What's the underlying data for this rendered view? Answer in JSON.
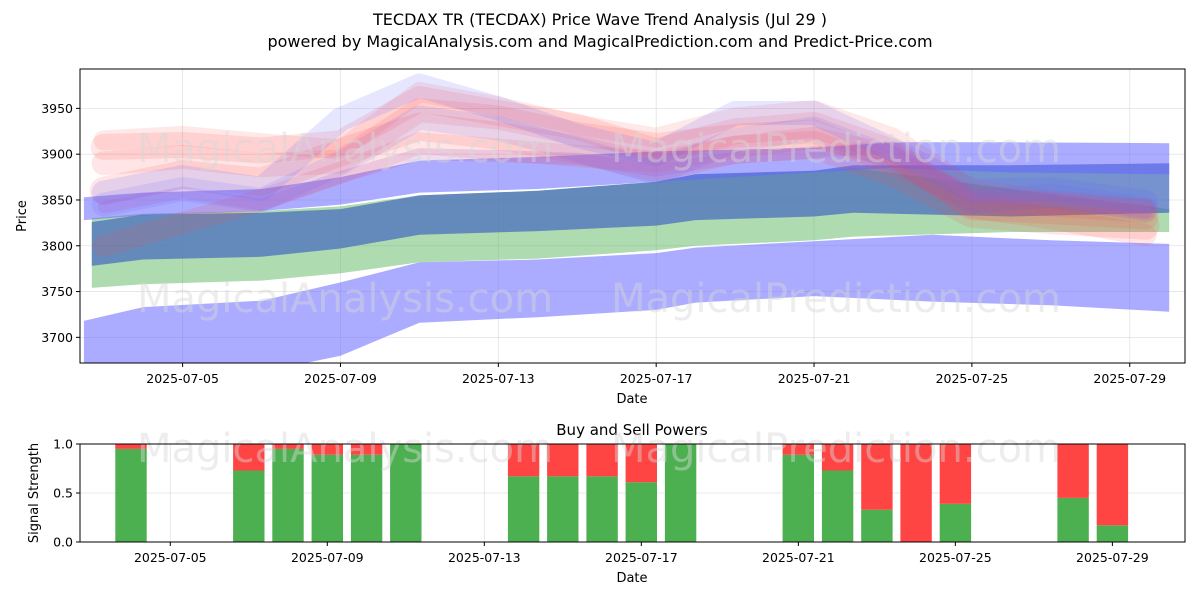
{
  "title_line1": "TECDAX TR (TECDAX) Price Wave Trend Analysis (Jul 29 )",
  "title_line2": "powered by MagicalAnalysis.com and MagicalPrediction.com and Predict-Price.com",
  "watermarks": [
    "MagicalAnalysis.com",
    "MagicalPrediction.com",
    "MagicalAnalysis.com",
    "MagicalPrediction.com",
    "MagicalAnalysis.com",
    "MagicalPrediction.com"
  ],
  "colors": {
    "blue": "#6666ff",
    "green": "#4caf50",
    "red": "#ff4444",
    "steel": "#4a6fbf"
  },
  "chart_data": [
    {
      "type": "area",
      "title": "",
      "xlabel": "Date",
      "ylabel": "Price",
      "x_ticks": [
        "2025-07-05",
        "2025-07-09",
        "2025-07-13",
        "2025-07-17",
        "2025-07-21",
        "2025-07-25",
        "2025-07-29"
      ],
      "y_ticks": [
        3700,
        3750,
        3800,
        3850,
        3900,
        3950
      ],
      "xlim": [
        "2025-07-02.4",
        "2025-07-30.4"
      ],
      "ylim": [
        3672,
        3993
      ],
      "grid": true,
      "bands": [
        {
          "name": "blue-wide",
          "color": "#6666ff",
          "opacity": 0.55,
          "x": [
            "2025-07-02.5",
            "2025-07-04",
            "2025-07-07",
            "2025-07-09",
            "2025-07-11",
            "2025-07-14",
            "2025-07-17",
            "2025-07-18",
            "2025-07-21",
            "2025-07-24",
            "2025-07-27",
            "2025-07-30"
          ],
          "upper": [
            3718,
            3733,
            3740,
            3760,
            3782,
            3785,
            3792,
            3798,
            3805,
            3812,
            3806,
            3802
          ],
          "lower": [
            3658,
            3655,
            3662,
            3680,
            3716,
            3722,
            3730,
            3738,
            3745,
            3739,
            3735,
            3728
          ]
        },
        {
          "name": "green-lower",
          "color": "#4caf50",
          "opacity": 0.45,
          "x": [
            "2025-07-02.7",
            "2025-07-04",
            "2025-07-07",
            "2025-07-09",
            "2025-07-11",
            "2025-07-14",
            "2025-07-17",
            "2025-07-18",
            "2025-07-21",
            "2025-07-22",
            "2025-07-26",
            "2025-07-30"
          ],
          "upper": [
            3830,
            3835,
            3838,
            3843,
            3855,
            3860,
            3870,
            3878,
            3882,
            3885,
            3862,
            3840
          ],
          "lower": [
            3754,
            3758,
            3762,
            3770,
            3782,
            3786,
            3795,
            3800,
            3806,
            3810,
            3815,
            3815
          ]
        },
        {
          "name": "steel-mid",
          "color": "#4a6fbf",
          "opacity": 0.75,
          "x": [
            "2025-07-02.7",
            "2025-07-04",
            "2025-07-07",
            "2025-07-09",
            "2025-07-11",
            "2025-07-14",
            "2025-07-17",
            "2025-07-18",
            "2025-07-21",
            "2025-07-22",
            "2025-07-26",
            "2025-07-30"
          ],
          "upper": [
            3826,
            3834,
            3836,
            3840,
            3855,
            3860,
            3870,
            3878,
            3882,
            3888,
            3888,
            3890
          ],
          "lower": [
            3778,
            3785,
            3788,
            3797,
            3812,
            3816,
            3822,
            3828,
            3832,
            3836,
            3832,
            3836
          ]
        },
        {
          "name": "blue-upper",
          "color": "#6666ff",
          "opacity": 0.55,
          "x": [
            "2025-07-02.5",
            "2025-07-04",
            "2025-07-07",
            "2025-07-09",
            "2025-07-11",
            "2025-07-14",
            "2025-07-17",
            "2025-07-21",
            "2025-07-23",
            "2025-07-26",
            "2025-07-30"
          ],
          "upper": [
            3853,
            3858,
            3862,
            3875,
            3893,
            3897,
            3903,
            3907,
            3913,
            3913,
            3912
          ],
          "lower": [
            3828,
            3833,
            3838,
            3845,
            3858,
            3862,
            3870,
            3880,
            3885,
            3880,
            3878
          ]
        }
      ],
      "waves": [
        {
          "color": "#ff4444",
          "opacity": 0.14,
          "width": 26,
          "x": [
            "2025-07-03",
            "2025-07-05",
            "2025-07-07",
            "2025-07-09",
            "2025-07-11",
            "2025-07-13",
            "2025-07-15",
            "2025-07-17",
            "2025-07-19",
            "2025-07-21",
            "2025-07-23",
            "2025-07-25",
            "2025-07-27",
            "2025-07-29.4"
          ],
          "y": [
            3908,
            3910,
            3904,
            3912,
            3960,
            3945,
            3930,
            3903,
            3925,
            3932,
            3902,
            3842,
            3838,
            3832
          ]
        },
        {
          "color": "#ff4444",
          "opacity": 0.14,
          "width": 24,
          "x": [
            "2025-07-03",
            "2025-07-05",
            "2025-07-07",
            "2025-07-09",
            "2025-07-11",
            "2025-07-13",
            "2025-07-15",
            "2025-07-17",
            "2025-07-19",
            "2025-07-21",
            "2025-07-23",
            "2025-07-25",
            "2025-07-27",
            "2025-07-29.4"
          ],
          "y": [
            3890,
            3897,
            3888,
            3892,
            3948,
            3940,
            3922,
            3910,
            3920,
            3925,
            3890,
            3852,
            3845,
            3838
          ]
        },
        {
          "color": "#ff4444",
          "opacity": 0.14,
          "width": 28,
          "x": [
            "2025-07-03",
            "2025-07-05",
            "2025-07-07",
            "2025-07-09",
            "2025-07-11",
            "2025-07-13",
            "2025-07-15",
            "2025-07-17",
            "2025-07-19",
            "2025-07-21",
            "2025-07-23",
            "2025-07-25",
            "2025-07-27",
            "2025-07-29.4"
          ],
          "y": [
            3860,
            3878,
            3870,
            3902,
            3930,
            3920,
            3905,
            3885,
            3905,
            3910,
            3880,
            3835,
            3828,
            3822
          ]
        },
        {
          "color": "#ff4444",
          "opacity": 0.14,
          "width": 22,
          "x": [
            "2025-07-03",
            "2025-07-05",
            "2025-07-07",
            "2025-07-09",
            "2025-07-11",
            "2025-07-13",
            "2025-07-15",
            "2025-07-17",
            "2025-07-19",
            "2025-07-21",
            "2025-07-23",
            "2025-07-25",
            "2025-07-27",
            "2025-07-29.4"
          ],
          "y": [
            3800,
            3825,
            3850,
            3880,
            3912,
            3905,
            3898,
            3892,
            3908,
            3918,
            3898,
            3842,
            3830,
            3812
          ]
        },
        {
          "color": "#ff4444",
          "opacity": 0.12,
          "width": 20,
          "x": [
            "2025-07-03",
            "2025-07-05",
            "2025-07-07",
            "2025-07-09",
            "2025-07-11",
            "2025-07-13",
            "2025-07-15",
            "2025-07-17",
            "2025-07-19",
            "2025-07-21",
            "2025-07-23",
            "2025-07-25",
            "2025-07-27",
            "2025-07-29.4"
          ],
          "y": [
            3915,
            3920,
            3912,
            3905,
            3968,
            3952,
            3932,
            3918,
            3940,
            3948,
            3918,
            3862,
            3850,
            3840
          ]
        },
        {
          "color": "#6666ff",
          "opacity": 0.16,
          "width": 24,
          "x": [
            "2025-07-03",
            "2025-07-05",
            "2025-07-07",
            "2025-07-09",
            "2025-07-11",
            "2025-07-13",
            "2025-07-15",
            "2025-07-17",
            "2025-07-19",
            "2025-07-21",
            "2025-07-23",
            "2025-07-25",
            "2025-07-27",
            "2025-07-29.4"
          ],
          "y": [
            3858,
            3875,
            3862,
            3938,
            3975,
            3950,
            3920,
            3900,
            3945,
            3945,
            3905,
            3860,
            3862,
            3848
          ]
        },
        {
          "color": "#6666ff",
          "opacity": 0.14,
          "width": 24,
          "x": [
            "2025-07-03",
            "2025-07-05",
            "2025-07-07",
            "2025-07-09",
            "2025-07-11",
            "2025-07-13",
            "2025-07-15",
            "2025-07-17",
            "2025-07-19",
            "2025-07-21",
            "2025-07-23",
            "2025-07-25",
            "2025-07-27",
            "2025-07-29.4"
          ],
          "y": [
            3845,
            3862,
            3850,
            3890,
            3940,
            3928,
            3905,
            3880,
            3915,
            3928,
            3895,
            3848,
            3855,
            3840
          ]
        },
        {
          "color": "#b060c0",
          "opacity": 0.22,
          "width": 12,
          "x": [
            "2025-07-03",
            "2025-07-05",
            "2025-07-07",
            "2025-07-09",
            "2025-07-11",
            "2025-07-13",
            "2025-07-15",
            "2025-07-17",
            "2025-07-19",
            "2025-07-21",
            "2025-07-23",
            "2025-07-25",
            "2025-07-27",
            "2025-07-29.4"
          ],
          "y": [
            3842,
            3858,
            3845,
            3875,
            3900,
            3898,
            3895,
            3882,
            3896,
            3902,
            3908,
            3855,
            3852,
            3836
          ]
        }
      ]
    },
    {
      "type": "bar",
      "title": "Buy and Sell Powers",
      "xlabel": "Date",
      "ylabel": "Signal Strength",
      "x_ticks": [
        "2025-07-05",
        "2025-07-09",
        "2025-07-13",
        "2025-07-17",
        "2025-07-21",
        "2025-07-25",
        "2025-07-29"
      ],
      "y_ticks": [
        "0.0",
        "0.5",
        "1.0"
      ],
      "ylim": [
        0,
        1
      ],
      "grid": true,
      "categories": [
        "2025-07-04",
        "2025-07-07",
        "2025-07-08",
        "2025-07-09",
        "2025-07-10",
        "2025-07-11",
        "2025-07-14",
        "2025-07-15",
        "2025-07-16",
        "2025-07-17",
        "2025-07-18",
        "2025-07-21",
        "2025-07-22",
        "2025-07-23",
        "2025-07-24",
        "2025-07-25",
        "2025-07-28",
        "2025-07-29"
      ],
      "series": [
        {
          "name": "Buy",
          "color": "#4caf50",
          "values": [
            0.95,
            0.73,
            0.95,
            0.89,
            0.89,
            1.0,
            0.67,
            0.67,
            0.67,
            0.61,
            1.0,
            0.89,
            0.73,
            0.33,
            0.0,
            0.39,
            0.45,
            0.17
          ]
        },
        {
          "name": "Sell",
          "color": "#ff4444",
          "values": [
            0.05,
            0.27,
            0.05,
            0.11,
            0.11,
            0.0,
            0.33,
            0.33,
            0.33,
            0.39,
            0.0,
            0.11,
            0.27,
            0.67,
            1.0,
            0.61,
            0.55,
            0.83
          ]
        }
      ]
    }
  ]
}
